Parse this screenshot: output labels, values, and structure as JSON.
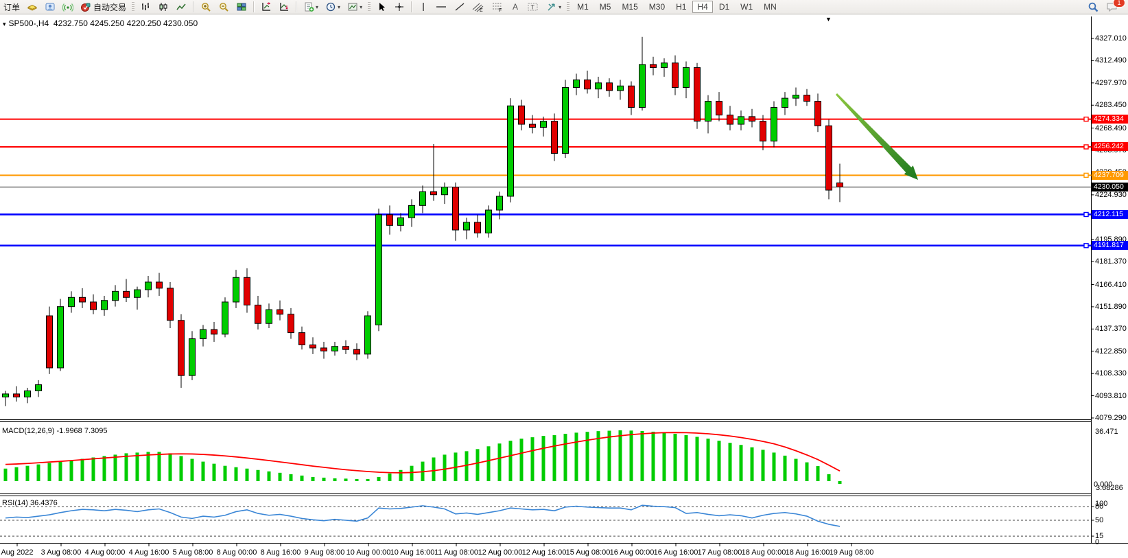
{
  "toolbar": {
    "order_label": "订单",
    "autotrade_label": "自动交易",
    "timeframes": [
      "M1",
      "M5",
      "M15",
      "M30",
      "H1",
      "H4",
      "D1",
      "W1",
      "MN"
    ],
    "active_timeframe": "H4",
    "notification_badge": "1"
  },
  "icons": {
    "title_menu": "▾",
    "scroll_to_end": "▼"
  },
  "chart": {
    "title": "SP500-,H4",
    "ohlc_text": "4232.750 4245.250 4220.250 4230.050"
  },
  "macd_panel": {
    "label": "MACD(12,26,9)",
    "values_text": "-1.9968 7.3095",
    "axis": [
      "36.471",
      "0.000",
      "3.68286"
    ]
  },
  "rsi_panel": {
    "label": "RSI(14)",
    "value_text": "36.4376",
    "axis": [
      "100",
      "80",
      "50",
      "15",
      "0"
    ]
  },
  "colors": {
    "bull": "#00CC00",
    "bear": "#E00000",
    "wick": "#000000",
    "resistance": "#FF0000",
    "pivot": "#FF9900",
    "support": "#0000FF",
    "current_price": "#000000",
    "macd_bar": "#00CC00",
    "macd_signal": "#FF0000",
    "rsi_line": "#3A86D6",
    "arrow": "#2E8B2E"
  },
  "chart_data": [
    {
      "type": "candlestick",
      "title": "SP500-,H4",
      "timeframe": "H4",
      "ohlc_current": {
        "open": 4232.75,
        "high": 4245.25,
        "low": 4220.25,
        "close": 4230.05
      },
      "y_axis_ticks": [
        "4327.010",
        "4312.490",
        "4297.970",
        "4283.450",
        "4268.490",
        "4253.970",
        "4239.450",
        "4224.930",
        "4210.410",
        "4195.890",
        "4181.370",
        "4166.410",
        "4151.890",
        "4137.370",
        "4122.850",
        "4108.330",
        "4093.810",
        "4079.290"
      ],
      "ylim": [
        4079.29,
        4327.01
      ],
      "x_labels": [
        "Aug 2022",
        "3 Aug 08:00",
        "4 Aug 00:00",
        "4 Aug 16:00",
        "5 Aug 08:00",
        "8 Aug 00:00",
        "8 Aug 16:00",
        "9 Aug 08:00",
        "10 Aug 00:00",
        "10 Aug 16:00",
        "11 Aug 08:00",
        "12 Aug 00:00",
        "12 Aug 16:00",
        "15 Aug 08:00",
        "16 Aug 00:00",
        "16 Aug 16:00",
        "17 Aug 08:00",
        "18 Aug 00:00",
        "18 Aug 16:00",
        "19 Aug 08:00"
      ],
      "horizontal_lines": [
        {
          "value": 4274.334,
          "label": "4274.334",
          "color": "#FF0000",
          "kind": "resistance"
        },
        {
          "value": 4256.242,
          "label": "4256.242",
          "color": "#FF0000",
          "kind": "resistance"
        },
        {
          "value": 4237.709,
          "label": "4237.709",
          "color": "#FF9900",
          "kind": "pivot"
        },
        {
          "value": 4230.05,
          "label": "4230.050",
          "color": "#000000",
          "kind": "current-price"
        },
        {
          "value": 4212.115,
          "label": "4212.115",
          "color": "#0000FF",
          "kind": "support"
        },
        {
          "value": 4191.817,
          "label": "4191.817",
          "color": "#0000FF",
          "kind": "support"
        }
      ],
      "annotations": [
        {
          "type": "arrow",
          "direction": "down-right",
          "color": "#2E8B2E"
        }
      ],
      "candles_ohlc": [
        [
          4093,
          4097,
          4087,
          4095
        ],
        [
          4095,
          4100,
          4090,
          4093
        ],
        [
          4093,
          4099,
          4089,
          4097
        ],
        [
          4097,
          4104,
          4093,
          4101
        ],
        [
          4146,
          4152,
          4108,
          4112
        ],
        [
          4112,
          4157,
          4110,
          4152
        ],
        [
          4152,
          4162,
          4148,
          4158
        ],
        [
          4158,
          4164,
          4151,
          4155
        ],
        [
          4155,
          4160,
          4147,
          4150
        ],
        [
          4150,
          4159,
          4146,
          4156
        ],
        [
          4156,
          4166,
          4152,
          4162
        ],
        [
          4162,
          4170,
          4155,
          4158
        ],
        [
          4158,
          4165,
          4150,
          4163
        ],
        [
          4163,
          4172,
          4158,
          4168
        ],
        [
          4168,
          4174,
          4159,
          4164
        ],
        [
          4164,
          4168,
          4138,
          4143
        ],
        [
          4143,
          4147,
          4099,
          4107
        ],
        [
          4107,
          4136,
          4104,
          4131
        ],
        [
          4131,
          4140,
          4126,
          4137
        ],
        [
          4137,
          4142,
          4129,
          4134
        ],
        [
          4134,
          4158,
          4132,
          4155
        ],
        [
          4155,
          4176,
          4151,
          4171
        ],
        [
          4171,
          4177,
          4148,
          4153
        ],
        [
          4153,
          4159,
          4137,
          4141
        ],
        [
          4141,
          4154,
          4138,
          4150
        ],
        [
          4150,
          4156,
          4143,
          4147
        ],
        [
          4147,
          4151,
          4131,
          4135
        ],
        [
          4135,
          4139,
          4124,
          4127
        ],
        [
          4127,
          4132,
          4121,
          4125
        ],
        [
          4125,
          4129,
          4118,
          4123
        ],
        [
          4123,
          4129,
          4120,
          4126
        ],
        [
          4126,
          4130,
          4121,
          4124
        ],
        [
          4124,
          4128,
          4117,
          4121
        ],
        [
          4121,
          4149,
          4118,
          4146
        ],
        [
          4140,
          4216,
          4136,
          4212
        ],
        [
          4212,
          4218,
          4199,
          4205
        ],
        [
          4205,
          4213,
          4201,
          4210
        ],
        [
          4210,
          4222,
          4204,
          4218
        ],
        [
          4218,
          4231,
          4213,
          4227
        ],
        [
          4227,
          4258,
          4221,
          4225
        ],
        [
          4225,
          4233,
          4219,
          4230
        ],
        [
          4230,
          4233,
          4195,
          4202
        ],
        [
          4202,
          4210,
          4196,
          4207
        ],
        [
          4207,
          4212,
          4197,
          4200
        ],
        [
          4200,
          4218,
          4197,
          4215
        ],
        [
          4215,
          4227,
          4209,
          4224
        ],
        [
          4224,
          4288,
          4220,
          4283
        ],
        [
          4283,
          4287,
          4267,
          4271
        ],
        [
          4271,
          4277,
          4265,
          4269
        ],
        [
          4269,
          4276,
          4263,
          4273
        ],
        [
          4273,
          4278,
          4247,
          4252
        ],
        [
          4252,
          4300,
          4249,
          4295
        ],
        [
          4295,
          4304,
          4290,
          4300
        ],
        [
          4300,
          4306,
          4291,
          4294
        ],
        [
          4294,
          4302,
          4288,
          4298
        ],
        [
          4298,
          4301,
          4289,
          4293
        ],
        [
          4293,
          4300,
          4287,
          4296
        ],
        [
          4296,
          4299,
          4277,
          4282
        ],
        [
          4282,
          4328,
          4280,
          4310
        ],
        [
          4310,
          4315,
          4303,
          4308
        ],
        [
          4308,
          4314,
          4302,
          4311
        ],
        [
          4311,
          4316,
          4290,
          4295
        ],
        [
          4295,
          4312,
          4288,
          4308
        ],
        [
          4308,
          4311,
          4268,
          4273
        ],
        [
          4273,
          4290,
          4265,
          4286
        ],
        [
          4286,
          4292,
          4273,
          4277
        ],
        [
          4277,
          4283,
          4267,
          4271
        ],
        [
          4271,
          4280,
          4267,
          4276
        ],
        [
          4276,
          4281,
          4269,
          4273
        ],
        [
          4273,
          4277,
          4254,
          4260
        ],
        [
          4260,
          4286,
          4256,
          4282
        ],
        [
          4282,
          4292,
          4277,
          4288
        ],
        [
          4288,
          4295,
          4283,
          4290
        ],
        [
          4290,
          4294,
          4283,
          4286
        ],
        [
          4286,
          4291,
          4266,
          4270
        ],
        [
          4270,
          4274,
          4222,
          4228
        ],
        [
          4232.75,
          4245.25,
          4220.25,
          4230.05
        ]
      ]
    },
    {
      "type": "bar",
      "name": "MACD(12,26,9)",
      "current_values": "-1.9968 7.3095",
      "max_label": 36.471,
      "values": [
        9,
        10,
        11,
        12,
        13,
        14,
        15,
        16,
        17,
        18,
        19,
        20,
        20.5,
        21,
        21,
        20,
        18,
        16,
        14,
        12.5,
        11,
        10,
        9,
        8,
        7,
        6,
        5,
        4,
        3,
        2.5,
        2,
        1.8,
        1.5,
        1.5,
        3,
        5.5,
        8,
        11,
        14,
        17,
        19,
        20.5,
        21.5,
        23,
        25,
        27,
        29,
        30.5,
        31.5,
        32.5,
        33,
        34,
        34.8,
        35.4,
        35.9,
        36.2,
        36.471,
        36.3,
        36,
        35.5,
        34.8,
        34,
        33,
        31.8,
        30.5,
        29,
        27.5,
        26,
        24.3,
        22.5,
        20.5,
        18.3,
        16,
        13.5,
        10.8,
        5,
        -2
      ],
      "signal": [
        12,
        12.3,
        12.7,
        13.2,
        13.7,
        14.2,
        14.8,
        15.4,
        16,
        16.6,
        17.2,
        17.8,
        18.3,
        18.8,
        19.2,
        19.5,
        19.6,
        19.5,
        19.2,
        18.7,
        18.1,
        17.4,
        16.6,
        15.7,
        14.8,
        13.8,
        12.8,
        11.8,
        10.8,
        9.9,
        9,
        8.2,
        7.5,
        6.9,
        6.4,
        6.1,
        6,
        6.2,
        6.7,
        7.5,
        8.6,
        9.9,
        11.4,
        13,
        14.7,
        16.5,
        18.3,
        20.1,
        21.9,
        23.6,
        25.2,
        26.7,
        28.1,
        29.4,
        30.6,
        31.7,
        32.6,
        33.4,
        34,
        34.5,
        34.8,
        34.9,
        34.8,
        34.5,
        34,
        33.3,
        32.4,
        31.3,
        30,
        28.5,
        26.8,
        24.5,
        21.8,
        18.8,
        15.5,
        11.5,
        7.3
      ]
    },
    {
      "type": "line",
      "name": "RSI(14)",
      "current_value": 36.4376,
      "levels": [
        80,
        50,
        15
      ],
      "ylim": [
        0,
        100
      ],
      "values": [
        55,
        57,
        56,
        59,
        62,
        67,
        71,
        74,
        73,
        71,
        74,
        72,
        69,
        73,
        75,
        67,
        57,
        54,
        59,
        57,
        61,
        69,
        73,
        65,
        61,
        63,
        59,
        54,
        51,
        49,
        52,
        50,
        48,
        55,
        77,
        75,
        76,
        79,
        82,
        79,
        75,
        64,
        66,
        63,
        67,
        71,
        77,
        75,
        73,
        74,
        71,
        79,
        81,
        79,
        78,
        77,
        77,
        73,
        83,
        81,
        80,
        78,
        65,
        67,
        63,
        60,
        62,
        60,
        55,
        61,
        65,
        67,
        64,
        59,
        48,
        41,
        36.44
      ]
    }
  ]
}
